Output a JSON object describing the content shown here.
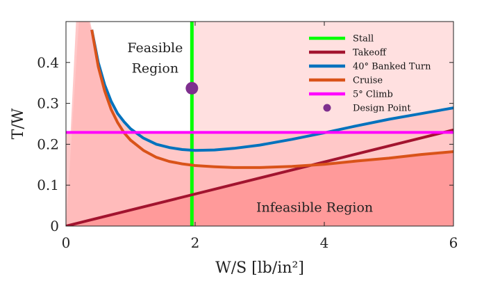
{
  "chart_data": {
    "type": "line",
    "title": "",
    "xlabel": "W/S [lb/in²]",
    "ylabel": "T/W",
    "xlim": [
      0,
      6
    ],
    "ylim": [
      0,
      0.5
    ],
    "x_ticks": [
      "0",
      "2",
      "4",
      "6"
    ],
    "y_ticks": [
      "0",
      "0.1",
      "0.2",
      "0.3",
      "0.4"
    ],
    "grid": false,
    "legend_position": "top-right",
    "series": [
      {
        "name": "Stall",
        "color": "#00ff00",
        "kind": "vertical",
        "x": 1.95
      },
      {
        "name": "Takeoff",
        "color": "#a2142f",
        "kind": "line",
        "x": [
          0,
          6
        ],
        "y": [
          0,
          0.235
        ]
      },
      {
        "name": "40° Banked Turn",
        "color": "#0072bd",
        "kind": "curve",
        "x": [
          0.4,
          0.5,
          0.6,
          0.7,
          0.8,
          0.9,
          1.0,
          1.2,
          1.4,
          1.6,
          1.8,
          2.0,
          2.3,
          2.6,
          3.0,
          3.5,
          4.0,
          4.5,
          5.0,
          5.5,
          6.0
        ],
        "y": [
          0.48,
          0.4,
          0.345,
          0.305,
          0.275,
          0.255,
          0.238,
          0.215,
          0.2,
          0.192,
          0.187,
          0.185,
          0.186,
          0.19,
          0.198,
          0.212,
          0.228,
          0.245,
          0.261,
          0.275,
          0.289
        ]
      },
      {
        "name": "Cruise",
        "color": "#d95319",
        "kind": "curve",
        "x": [
          0.4,
          0.5,
          0.6,
          0.7,
          0.8,
          0.9,
          1.0,
          1.2,
          1.4,
          1.6,
          1.8,
          2.0,
          2.3,
          2.6,
          3.0,
          3.5,
          4.0,
          4.5,
          5.0,
          5.5,
          6.0
        ],
        "y": [
          0.48,
          0.39,
          0.33,
          0.285,
          0.253,
          0.228,
          0.21,
          0.185,
          0.168,
          0.158,
          0.152,
          0.148,
          0.145,
          0.143,
          0.143,
          0.146,
          0.151,
          0.159,
          0.166,
          0.175,
          0.182
        ]
      },
      {
        "name": "5° Climb",
        "color": "#ff00ff",
        "kind": "horizontal",
        "y": 0.229
      },
      {
        "name": "Design Point",
        "color": "#7e2f8e",
        "kind": "point",
        "x": 1.95,
        "y": 0.337
      }
    ],
    "annotations": [
      {
        "text": "Feasible",
        "x": 1.38,
        "y": 0.425
      },
      {
        "text": "Region",
        "x": 1.38,
        "y": 0.375
      },
      {
        "text": "Infeasible Region",
        "x": 3.85,
        "y": 0.035
      }
    ]
  }
}
